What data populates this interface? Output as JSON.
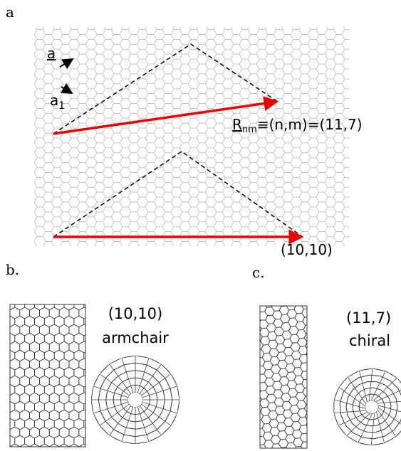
{
  "panel_a": {
    "label": "a",
    "vector_a2": "a",
    "vector_a1": {
      "base": "a",
      "subscript": "1"
    },
    "chiral_vector": {
      "symbol": "R",
      "subscript": "nm",
      "equation": "≡(n,m)=(11,7)"
    },
    "armchair_label": "(10,10)"
  },
  "panel_b": {
    "label": "b.",
    "indices": "(10,10)",
    "type": "armchair"
  },
  "panel_c": {
    "label": "c.",
    "indices": "(11,7)",
    "type": "chiral"
  }
}
